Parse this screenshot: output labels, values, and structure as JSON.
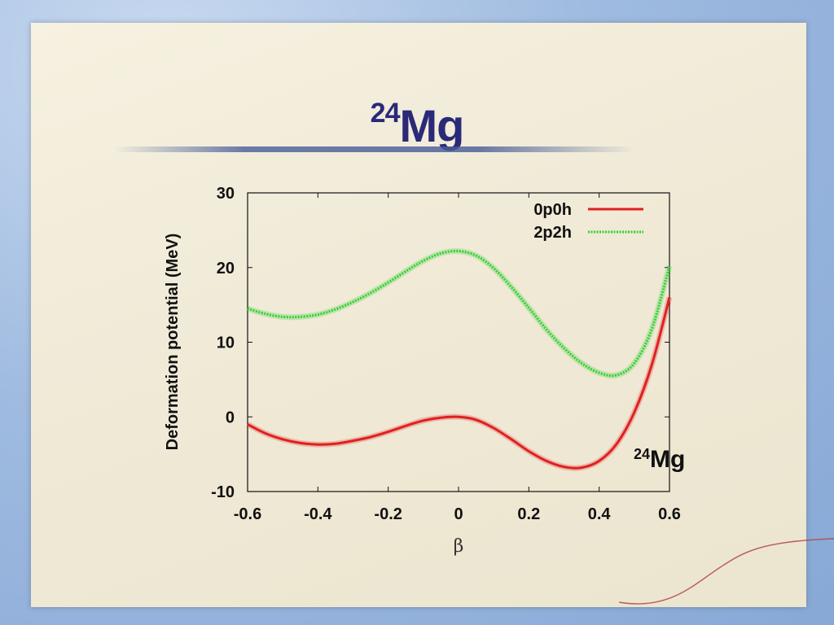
{
  "slide": {
    "title_mass": "24",
    "title_element": "Mg"
  },
  "chart_data": {
    "type": "line",
    "xlabel": "β",
    "ylabel": "Deformation potential (MeV)",
    "xlim": [
      -0.6,
      0.6
    ],
    "ylim": [
      -10,
      30
    ],
    "xticks": [
      "-0.6",
      "-0.4",
      "-0.2",
      "0",
      "0.2",
      "0.4",
      "0.6"
    ],
    "yticks": [
      "-10",
      "0",
      "10",
      "20",
      "30"
    ],
    "legend_position": "top-right",
    "annotation": {
      "mass": "24",
      "element": "Mg"
    },
    "series": [
      {
        "name": "0p0h",
        "color": "#e02020",
        "style": "solid",
        "x": [
          -0.6,
          -0.55,
          -0.5,
          -0.45,
          -0.4,
          -0.35,
          -0.3,
          -0.25,
          -0.2,
          -0.15,
          -0.1,
          -0.05,
          0.0,
          0.05,
          0.1,
          0.15,
          0.2,
          0.25,
          0.3,
          0.35,
          0.4,
          0.45,
          0.5,
          0.55,
          0.6
        ],
        "values": [
          -1.0,
          -2.2,
          -3.0,
          -3.5,
          -3.7,
          -3.6,
          -3.2,
          -2.7,
          -2.0,
          -1.2,
          -0.5,
          -0.1,
          0.0,
          -0.4,
          -1.5,
          -3.0,
          -4.6,
          -5.9,
          -6.7,
          -6.8,
          -5.9,
          -3.6,
          0.6,
          7.0,
          16.0
        ]
      },
      {
        "name": "2p2h",
        "color": "#30d030",
        "style": "dotted",
        "x": [
          -0.6,
          -0.55,
          -0.5,
          -0.45,
          -0.4,
          -0.35,
          -0.3,
          -0.25,
          -0.2,
          -0.15,
          -0.1,
          -0.05,
          0.0,
          0.05,
          0.1,
          0.15,
          0.2,
          0.25,
          0.3,
          0.35,
          0.4,
          0.45,
          0.5,
          0.55,
          0.6
        ],
        "values": [
          14.5,
          13.8,
          13.4,
          13.4,
          13.7,
          14.4,
          15.4,
          16.6,
          18.0,
          19.5,
          20.9,
          21.9,
          22.2,
          21.6,
          19.9,
          17.4,
          14.6,
          11.7,
          9.2,
          7.2,
          5.9,
          5.6,
          7.2,
          11.8,
          20.2
        ]
      }
    ]
  }
}
